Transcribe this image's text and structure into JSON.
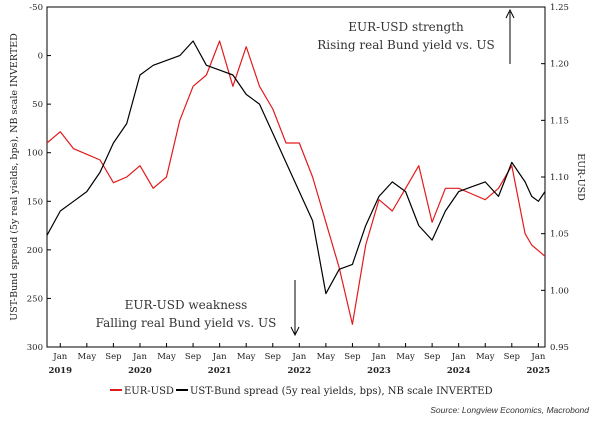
{
  "chart_data": {
    "type": "line",
    "title": "",
    "xlabel": "",
    "x_axis": {
      "month_ticks": [
        "Jan",
        "May",
        "Sep",
        "Jan",
        "May",
        "Sep",
        "Jan",
        "May",
        "Sep",
        "Jan",
        "May",
        "Sep",
        "Jan",
        "May",
        "Sep",
        "Jan",
        "May",
        "Sep",
        "Jan"
      ],
      "years": [
        "2019",
        "2020",
        "2021",
        "2022",
        "2023",
        "2024",
        "2025"
      ],
      "range": [
        "2018-11",
        "2025-02"
      ]
    },
    "y_left": {
      "label": "UST-Bund spread (5y real yields, bps), NB scale INVERTED",
      "inverted": true,
      "range": [
        -50,
        300
      ],
      "ticks": [
        "-50",
        "0",
        "50",
        "100",
        "150",
        "200",
        "250",
        "300"
      ]
    },
    "y_right": {
      "label": "EUR-USD",
      "range": [
        0.95,
        1.25
      ],
      "ticks": [
        "0.95",
        "1.00",
        "1.05",
        "1.10",
        "1.15",
        "1.20",
        "1.25"
      ]
    },
    "series": [
      {
        "name": "EUR-USD",
        "axis": "right",
        "color": "#e31a1c",
        "points": [
          [
            "2018-11",
            1.13
          ],
          [
            "2019-01",
            1.14
          ],
          [
            "2019-03",
            1.125
          ],
          [
            "2019-05",
            1.12
          ],
          [
            "2019-07",
            1.115
          ],
          [
            "2019-09",
            1.095
          ],
          [
            "2019-11",
            1.1
          ],
          [
            "2020-01",
            1.11
          ],
          [
            "2020-03",
            1.09
          ],
          [
            "2020-05",
            1.1
          ],
          [
            "2020-07",
            1.15
          ],
          [
            "2020-09",
            1.18
          ],
          [
            "2020-11",
            1.19
          ],
          [
            "2021-01",
            1.22
          ],
          [
            "2021-03",
            1.18
          ],
          [
            "2021-05",
            1.215
          ],
          [
            "2021-07",
            1.18
          ],
          [
            "2021-09",
            1.16
          ],
          [
            "2021-11",
            1.13
          ],
          [
            "2022-01",
            1.13
          ],
          [
            "2022-03",
            1.1
          ],
          [
            "2022-05",
            1.06
          ],
          [
            "2022-07",
            1.02
          ],
          [
            "2022-09",
            0.97
          ],
          [
            "2022-11",
            1.04
          ],
          [
            "2023-01",
            1.08
          ],
          [
            "2023-03",
            1.07
          ],
          [
            "2023-05",
            1.09
          ],
          [
            "2023-07",
            1.11
          ],
          [
            "2023-09",
            1.06
          ],
          [
            "2023-11",
            1.09
          ],
          [
            "2024-01",
            1.09
          ],
          [
            "2024-03",
            1.085
          ],
          [
            "2024-05",
            1.08
          ],
          [
            "2024-07",
            1.09
          ],
          [
            "2024-09",
            1.11
          ],
          [
            "2024-11",
            1.05
          ],
          [
            "2024-12",
            1.04
          ],
          [
            "2025-01",
            1.035
          ],
          [
            "2025-02",
            1.03
          ]
        ]
      },
      {
        "name": "UST-Bund spread (5y real yields, bps), NB scale INVERTED",
        "axis": "left",
        "color": "#000000",
        "points": [
          [
            "2018-11",
            185
          ],
          [
            "2019-01",
            160
          ],
          [
            "2019-03",
            150
          ],
          [
            "2019-05",
            140
          ],
          [
            "2019-07",
            120
          ],
          [
            "2019-09",
            90
          ],
          [
            "2019-11",
            70
          ],
          [
            "2020-01",
            20
          ],
          [
            "2020-03",
            10
          ],
          [
            "2020-05",
            5
          ],
          [
            "2020-07",
            0
          ],
          [
            "2020-09",
            -15
          ],
          [
            "2020-11",
            10
          ],
          [
            "2021-01",
            15
          ],
          [
            "2021-03",
            20
          ],
          [
            "2021-05",
            40
          ],
          [
            "2021-07",
            50
          ],
          [
            "2021-09",
            80
          ],
          [
            "2021-11",
            110
          ],
          [
            "2022-01",
            140
          ],
          [
            "2022-03",
            170
          ],
          [
            "2022-05",
            245
          ],
          [
            "2022-07",
            220
          ],
          [
            "2022-09",
            215
          ],
          [
            "2022-11",
            175
          ],
          [
            "2023-01",
            145
          ],
          [
            "2023-03",
            130
          ],
          [
            "2023-05",
            140
          ],
          [
            "2023-07",
            175
          ],
          [
            "2023-09",
            190
          ],
          [
            "2023-11",
            160
          ],
          [
            "2024-01",
            140
          ],
          [
            "2024-03",
            135
          ],
          [
            "2024-05",
            130
          ],
          [
            "2024-07",
            145
          ],
          [
            "2024-09",
            110
          ],
          [
            "2024-11",
            130
          ],
          [
            "2024-12",
            145
          ],
          [
            "2025-01",
            150
          ],
          [
            "2025-02",
            140
          ]
        ]
      }
    ],
    "annotations": [
      {
        "lines": [
          "EUR-USD strength",
          "Rising real Bund yield vs. US"
        ],
        "arrow": "up"
      },
      {
        "lines": [
          "EUR-USD weakness",
          "Falling real Bund yield vs. US"
        ],
        "arrow": "down"
      }
    ],
    "legend": {
      "placement": "bottom",
      "items": [
        "EUR-USD",
        "UST-Bund spread (5y real yields, bps), NB scale INVERTED"
      ]
    },
    "grid": false
  },
  "source": "Source: Longview Economics, Macrobond"
}
